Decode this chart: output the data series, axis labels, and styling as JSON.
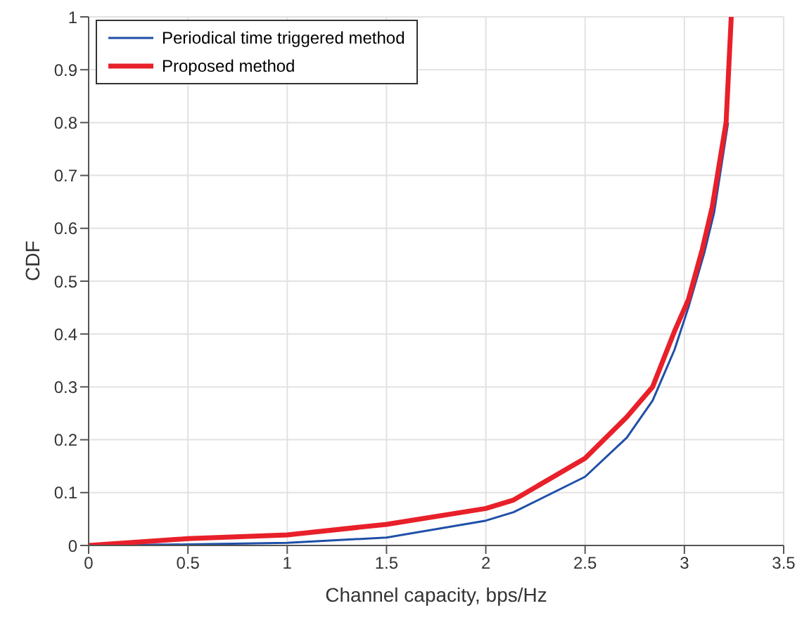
{
  "chart_data": {
    "type": "line",
    "xlabel": "Channel capacity, bps/Hz",
    "ylabel": "CDF",
    "xlim": [
      0,
      3.5
    ],
    "xticks": [
      0,
      0.5,
      1,
      1.5,
      2,
      2.5,
      3,
      3.5
    ],
    "ylim": [
      0,
      1
    ],
    "yticks": [
      0,
      0.1,
      0.2,
      0.3,
      0.4,
      0.5,
      0.6,
      0.7,
      0.8,
      0.9,
      1
    ],
    "grid": true,
    "legend": "top left",
    "marker": "none",
    "line_style": "solid",
    "series": [
      {
        "name": "Periodical time triggered method",
        "color": "#1f4fa8",
        "x": [
          0,
          0.5,
          1,
          1.5,
          2,
          2.14,
          2.5,
          2.71,
          2.84,
          2.95,
          3.02,
          3.1,
          3.15,
          3.22
        ],
        "values": [
          0,
          0.002,
          0.005,
          0.015,
          0.047,
          0.063,
          0.13,
          0.204,
          0.274,
          0.37,
          0.45,
          0.553,
          0.63,
          0.8
        ]
      },
      {
        "name": "Proposed method",
        "color": "#e8202a",
        "x": [
          0,
          0.5,
          1,
          1.5,
          2,
          2.14,
          2.5,
          2.71,
          2.84,
          2.95,
          3.02,
          3.09,
          3.14,
          3.21,
          3.236
        ],
        "values": [
          0,
          0.013,
          0.02,
          0.04,
          0.07,
          0.086,
          0.165,
          0.243,
          0.3,
          0.405,
          0.465,
          0.56,
          0.64,
          0.8,
          1
        ]
      }
    ]
  }
}
